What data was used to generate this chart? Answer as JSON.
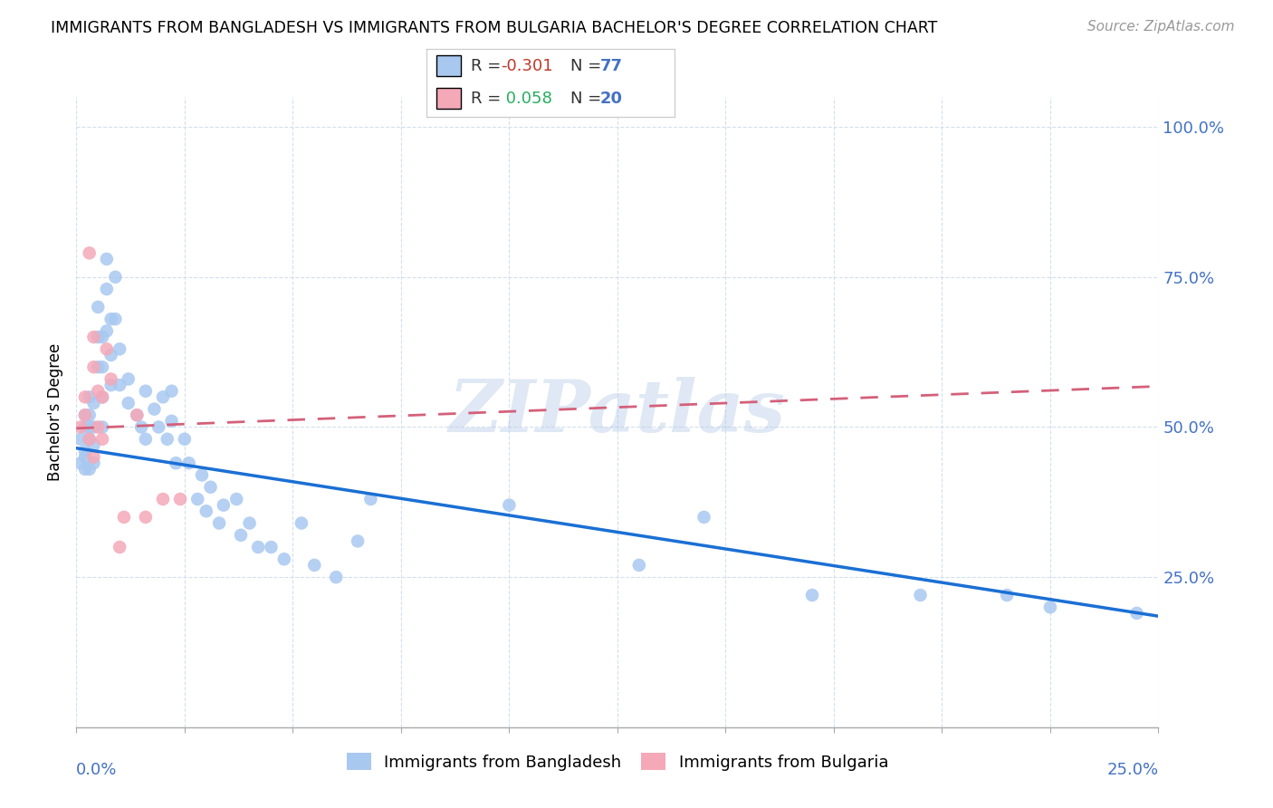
{
  "title": "IMMIGRANTS FROM BANGLADESH VS IMMIGRANTS FROM BULGARIA BACHELOR'S DEGREE CORRELATION CHART",
  "source": "Source: ZipAtlas.com",
  "ylabel": "Bachelor's Degree",
  "ytick_labels": [
    "",
    "25.0%",
    "50.0%",
    "75.0%",
    "100.0%"
  ],
  "ytick_vals": [
    0.0,
    0.25,
    0.5,
    0.75,
    1.0
  ],
  "xlim": [
    0.0,
    0.25
  ],
  "ylim": [
    0.0,
    1.05
  ],
  "color_bangladesh": "#a8c8f0",
  "color_bulgaria": "#f4a8b8",
  "color_trend_bangladesh": "#1a6fd4",
  "color_trend_bulgaria": "#d4607a",
  "color_axis_blue": "#4472c4",
  "watermark": "ZIPatlas",
  "bangladesh_x": [
    0.001,
    0.001,
    0.002,
    0.002,
    0.002,
    0.002,
    0.002,
    0.003,
    0.003,
    0.003,
    0.003,
    0.003,
    0.004,
    0.004,
    0.004,
    0.004,
    0.005,
    0.005,
    0.005,
    0.006,
    0.006,
    0.006,
    0.006,
    0.007,
    0.007,
    0.007,
    0.008,
    0.008,
    0.008,
    0.009,
    0.009,
    0.01,
    0.01,
    0.012,
    0.012,
    0.014,
    0.015,
    0.016,
    0.016,
    0.018,
    0.019,
    0.02,
    0.021,
    0.022,
    0.022,
    0.023,
    0.025,
    0.026,
    0.028,
    0.029,
    0.03,
    0.031,
    0.033,
    0.034,
    0.037,
    0.038,
    0.04,
    0.042,
    0.045,
    0.048,
    0.052,
    0.055,
    0.06,
    0.065,
    0.068,
    0.1,
    0.13,
    0.145,
    0.17,
    0.195,
    0.215,
    0.225,
    0.245
  ],
  "bangladesh_y": [
    0.48,
    0.44,
    0.5,
    0.45,
    0.43,
    0.52,
    0.46,
    0.52,
    0.55,
    0.48,
    0.5,
    0.43,
    0.47,
    0.44,
    0.5,
    0.54,
    0.7,
    0.65,
    0.6,
    0.65,
    0.6,
    0.55,
    0.5,
    0.78,
    0.73,
    0.66,
    0.68,
    0.62,
    0.57,
    0.75,
    0.68,
    0.63,
    0.57,
    0.58,
    0.54,
    0.52,
    0.5,
    0.56,
    0.48,
    0.53,
    0.5,
    0.55,
    0.48,
    0.56,
    0.51,
    0.44,
    0.48,
    0.44,
    0.38,
    0.42,
    0.36,
    0.4,
    0.34,
    0.37,
    0.38,
    0.32,
    0.34,
    0.3,
    0.3,
    0.28,
    0.34,
    0.27,
    0.25,
    0.31,
    0.38,
    0.37,
    0.27,
    0.35,
    0.22,
    0.22,
    0.22,
    0.2,
    0.19
  ],
  "bulgaria_x": [
    0.001,
    0.002,
    0.002,
    0.003,
    0.003,
    0.004,
    0.004,
    0.004,
    0.005,
    0.005,
    0.006,
    0.006,
    0.007,
    0.008,
    0.01,
    0.011,
    0.014,
    0.016,
    0.02,
    0.024
  ],
  "bulgaria_y": [
    0.5,
    0.52,
    0.55,
    0.79,
    0.48,
    0.65,
    0.6,
    0.45,
    0.56,
    0.5,
    0.55,
    0.48,
    0.63,
    0.58,
    0.3,
    0.35,
    0.52,
    0.35,
    0.38,
    0.38
  ],
  "trend_bang_x0": 0.0,
  "trend_bang_y0": 0.465,
  "trend_bang_x1": 0.25,
  "trend_bang_y1": 0.185,
  "trend_bulg_x0": 0.0,
  "trend_bulg_y0": 0.498,
  "trend_bulg_x1": 0.25,
  "trend_bulg_y1": 0.568
}
